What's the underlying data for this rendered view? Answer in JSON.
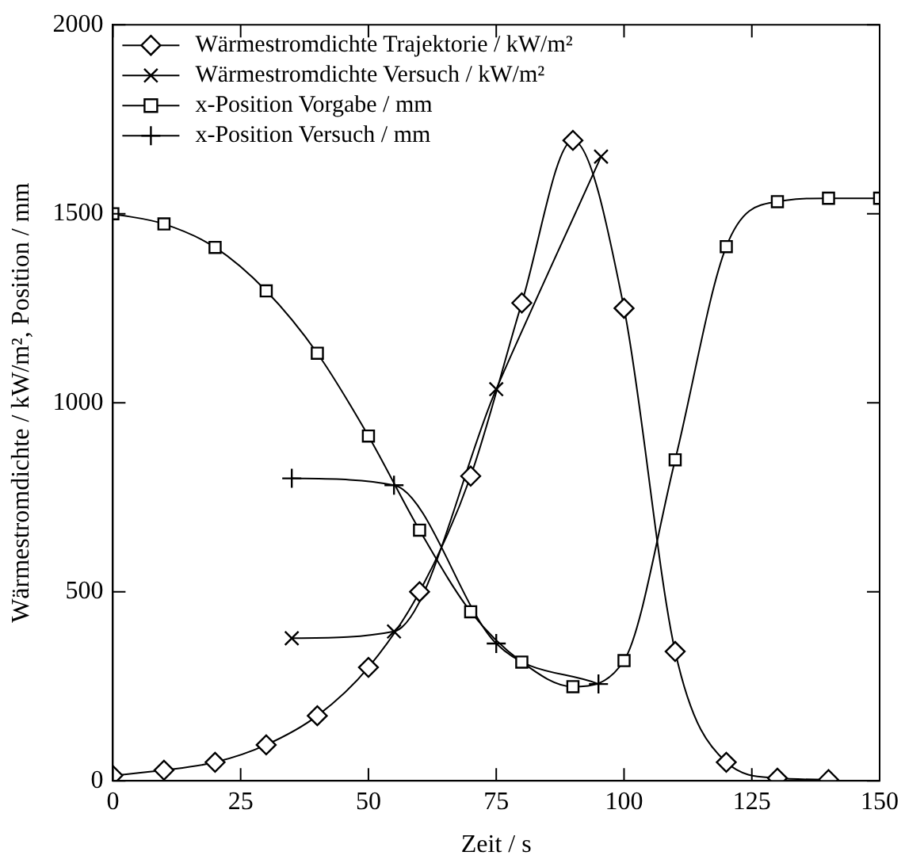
{
  "chart_data": {
    "type": "line",
    "xlabel": "Zeit / s",
    "ylabel": "Wärmestromdichte / kW/m², Position / mm",
    "xlim": [
      0,
      150
    ],
    "xticks": [
      0,
      25,
      50,
      75,
      100,
      125,
      150
    ],
    "ylim": [
      0,
      2000
    ],
    "yticks": [
      0,
      500,
      1000,
      1500,
      2000
    ],
    "grid": false,
    "legend": "top left",
    "line_style": "solid",
    "series": [
      {
        "name": "Wärmestromdichte Trajektorie / kW/m²",
        "color": "#000000",
        "marker": "diamond",
        "x": [
          0,
          10,
          20,
          30,
          40,
          50,
          60,
          70,
          80,
          90,
          100,
          110,
          120,
          130,
          140
        ],
        "values": [
          14,
          28,
          49,
          95,
          172,
          300,
          500,
          806,
          1264,
          1694,
          1250,
          342,
          49,
          7,
          3
        ]
      },
      {
        "name": "Wärmestromdichte Versuch / kW/m²",
        "color": "#000000",
        "marker": "x",
        "x": [
          35,
          55,
          75,
          95.5
        ],
        "values": [
          377,
          395,
          1036,
          1651
        ]
      },
      {
        "name": "x-Position Vorgabe / mm",
        "color": "#000000",
        "marker": "square",
        "x": [
          0,
          10,
          20,
          30,
          40,
          50,
          60,
          70,
          80,
          90,
          100,
          110,
          120,
          130,
          140,
          150
        ],
        "values": [
          1500,
          1473,
          1411,
          1296,
          1131,
          912,
          663,
          447,
          314,
          249,
          318,
          849,
          1413,
          1532,
          1541,
          1541
        ]
      },
      {
        "name": "x-Position Versuch / mm",
        "color": "#000000",
        "marker": "cross",
        "x": [
          35,
          55,
          75,
          95
        ],
        "values": [
          800,
          782,
          363,
          256
        ]
      }
    ]
  }
}
